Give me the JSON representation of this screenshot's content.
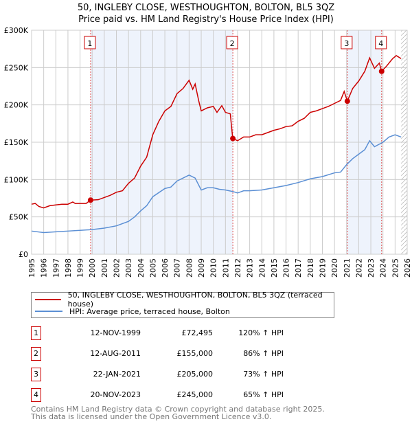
{
  "chart_data": {
    "type": "line",
    "title": "50, INGLEBY CLOSE, WESTHOUGHTON, BOLTON, BL5 3QZ",
    "subtitle": "Price paid vs. HM Land Registry's House Price Index (HPI)",
    "xlim": [
      1995,
      2026
    ],
    "ylim": [
      0,
      300000
    ],
    "x_ticks": [
      "1995",
      "1996",
      "1997",
      "1998",
      "1999",
      "2000",
      "2001",
      "2002",
      "2003",
      "2004",
      "2005",
      "2006",
      "2007",
      "2008",
      "2009",
      "2010",
      "2011",
      "2012",
      "2013",
      "2014",
      "2015",
      "2016",
      "2017",
      "2018",
      "2019",
      "2020",
      "2021",
      "2022",
      "2023",
      "2024",
      "2025",
      "2026"
    ],
    "y_ticks": [
      {
        "v": 0,
        "l": "£0"
      },
      {
        "v": 50000,
        "l": "£50K"
      },
      {
        "v": 100000,
        "l": "£100K"
      },
      {
        "v": 150000,
        "l": "£150K"
      },
      {
        "v": 200000,
        "l": "£200K"
      },
      {
        "v": 250000,
        "l": "£250K"
      },
      {
        "v": 300000,
        "l": "£300K"
      }
    ],
    "grid": true,
    "colors": {
      "property": "#cc0000",
      "hpi": "#5b8fd4",
      "shade": "#eef3fc"
    },
    "shaded_ranges": [
      [
        1999.87,
        2011.61
      ],
      [
        2021.06,
        2023.89
      ]
    ],
    "forecast_from": 2025.5,
    "series": [
      {
        "name": "50, INGLEBY CLOSE, WESTHOUGHTON, BOLTON, BL5 3QZ (terraced house)",
        "x": [
          1995,
          1995.3,
          1995.6,
          1996,
          1996.5,
          1997,
          1997.5,
          1998,
          1998.4,
          1998.6,
          1999,
          1999.5,
          1999.87,
          2000.5,
          2001,
          2001.5,
          2002,
          2002.5,
          2003,
          2003.5,
          2004,
          2004.5,
          2005,
          2005.5,
          2006,
          2006.5,
          2007,
          2007.5,
          2008,
          2008.3,
          2008.5,
          2008.8,
          2009,
          2009.5,
          2010,
          2010.3,
          2010.7,
          2011,
          2011.4,
          2011.6,
          2012,
          2012.5,
          2013,
          2013.5,
          2014,
          2014.5,
          2015,
          2015.5,
          2016,
          2016.5,
          2017,
          2017.5,
          2018,
          2018.5,
          2019,
          2019.5,
          2020,
          2020.5,
          2020.8,
          2021.06,
          2021.5,
          2022,
          2022.5,
          2022.9,
          2023.3,
          2023.7,
          2023.89,
          2024.3,
          2024.8,
          2025.1,
          2025.5
        ],
        "y": [
          67000,
          68000,
          64000,
          62000,
          65000,
          66000,
          67000,
          67000,
          70000,
          68000,
          68000,
          68000,
          72495,
          73000,
          76000,
          79000,
          83000,
          85000,
          95000,
          102000,
          118000,
          130000,
          160000,
          178000,
          192000,
          198000,
          215000,
          222000,
          233000,
          221000,
          228000,
          205000,
          192000,
          196000,
          198000,
          190000,
          199000,
          190000,
          188000,
          155000,
          152000,
          157000,
          157000,
          160000,
          160000,
          163000,
          166000,
          168000,
          171000,
          172000,
          178000,
          182000,
          190000,
          192000,
          195000,
          198000,
          202000,
          206000,
          218000,
          205000,
          222000,
          232000,
          245000,
          263000,
          249000,
          256000,
          245000,
          252000,
          262000,
          266000,
          262000
        ]
      },
      {
        "name": "HPI: Average price, terraced house, Bolton",
        "x": [
          1995,
          1996,
          1997,
          1998,
          1999,
          2000,
          2001,
          2002,
          2003,
          2003.5,
          2004,
          2004.5,
          2005,
          2006,
          2006.5,
          2007,
          2008,
          2008.5,
          2009,
          2009.5,
          2010,
          2010.5,
          2011,
          2011.6,
          2012,
          2012.5,
          2013,
          2014,
          2015,
          2016,
          2017,
          2018,
          2019,
          2020,
          2020.5,
          2021,
          2021.5,
          2022,
          2022.5,
          2022.9,
          2023.3,
          2024,
          2024.5,
          2025,
          2025.5
        ],
        "y": [
          31000,
          29000,
          30000,
          31000,
          32000,
          33000,
          35000,
          38000,
          44000,
          50000,
          58000,
          65000,
          77000,
          88000,
          90000,
          98000,
          106000,
          102000,
          86000,
          89000,
          89000,
          87000,
          86000,
          84000,
          82000,
          85000,
          85000,
          86000,
          89000,
          92000,
          96000,
          101000,
          104000,
          109000,
          110000,
          120000,
          128000,
          134000,
          140000,
          152000,
          144000,
          150000,
          157000,
          160000,
          157000
        ]
      }
    ],
    "sales": [
      {
        "n": "1",
        "x": 1999.87,
        "y": 72495
      },
      {
        "n": "2",
        "x": 2011.61,
        "y": 155000
      },
      {
        "n": "3",
        "x": 2021.06,
        "y": 205000
      },
      {
        "n": "4",
        "x": 2023.89,
        "y": 245000
      }
    ]
  },
  "legend": {
    "property": "50, INGLEBY CLOSE, WESTHOUGHTON, BOLTON, BL5 3QZ (terraced house)",
    "hpi": "HPI: Average price, terraced house, Bolton"
  },
  "table": [
    {
      "n": "1",
      "date": "12-NOV-1999",
      "price": "£72,495",
      "hpi": "120% ↑ HPI"
    },
    {
      "n": "2",
      "date": "12-AUG-2011",
      "price": "£155,000",
      "hpi": "86% ↑ HPI"
    },
    {
      "n": "3",
      "date": "22-JAN-2021",
      "price": "£205,000",
      "hpi": "73% ↑ HPI"
    },
    {
      "n": "4",
      "date": "20-NOV-2023",
      "price": "£245,000",
      "hpi": "65% ↑ HPI"
    }
  ],
  "footer": {
    "line1": "Contains HM Land Registry data © Crown copyright and database right 2025.",
    "line2": "This data is licensed under the Open Government Licence v3.0."
  }
}
